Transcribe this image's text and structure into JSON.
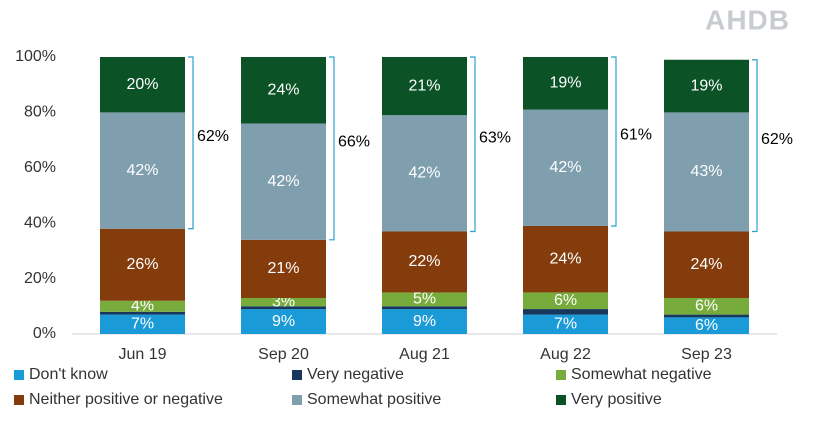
{
  "chart_data": {
    "type": "stacked_bar",
    "logo": "AHDB",
    "categories": [
      "Jun 19",
      "Sep 20",
      "Aug 21",
      "Aug 22",
      "Sep 23"
    ],
    "series": [
      {
        "name": "Don't know",
        "color": "#1a9ad6",
        "values": [
          7,
          9,
          9,
          7,
          6
        ],
        "value_labels": [
          "7%",
          "9%",
          "9%",
          "7%",
          "6%"
        ]
      },
      {
        "name": "Very negative",
        "color": "#17375e",
        "values": [
          1,
          1,
          1,
          2,
          1
        ]
      },
      {
        "name": "Somewhat negative",
        "color": "#77ab3b",
        "values": [
          4,
          3,
          5,
          6,
          6
        ],
        "value_labels": [
          "4%",
          "3%",
          "5%",
          "6%",
          "6%"
        ]
      },
      {
        "name": "Neither positive or negative",
        "color": "#843c0c",
        "values": [
          26,
          21,
          22,
          24,
          24
        ],
        "value_labels": [
          "26%",
          "21%",
          "22%",
          "24%",
          "24%"
        ]
      },
      {
        "name": "Somewhat positive",
        "color": "#7f9faf",
        "values": [
          42,
          42,
          42,
          42,
          43
        ],
        "value_labels": [
          "42%",
          "42%",
          "42%",
          "42%",
          "43%"
        ]
      },
      {
        "name": "Very positive",
        "color": "#0b5226",
        "values": [
          20,
          24,
          21,
          19,
          19
        ],
        "value_labels": [
          "20%",
          "24%",
          "21%",
          "19%",
          "19%"
        ]
      }
    ],
    "positive_totals": {
      "color": "#2aa0d0",
      "values": [
        62,
        66,
        63,
        61,
        62
      ],
      "value_labels": [
        "62%",
        "66%",
        "63%",
        "61%",
        "62%"
      ]
    },
    "ylim": [
      0,
      100
    ],
    "yticks": [
      {
        "value": 0,
        "label": "0%"
      },
      {
        "value": 20,
        "label": "20%"
      },
      {
        "value": 40,
        "label": "40%"
      },
      {
        "value": 60,
        "label": "60%"
      },
      {
        "value": 80,
        "label": "80%"
      },
      {
        "value": 100,
        "label": "100%"
      }
    ]
  }
}
